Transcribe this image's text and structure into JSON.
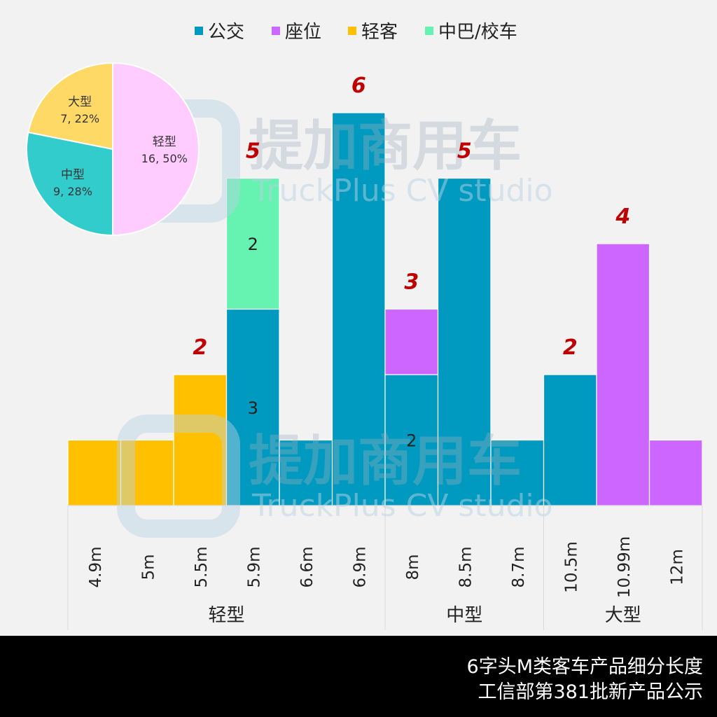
{
  "chart_data": [
    {
      "type": "bar",
      "stacked": true,
      "categories": [
        "4.9m",
        "5m",
        "5.5m",
        "5.9m",
        "6.6m",
        "6.9m",
        "8m",
        "8.5m",
        "8.7m",
        "10.5m",
        "10.99m",
        "12m"
      ],
      "groups": [
        {
          "label": "轻型",
          "categories": [
            "4.9m",
            "5m",
            "5.5m",
            "5.9m",
            "6.6m",
            "6.9m"
          ]
        },
        {
          "label": "中型",
          "categories": [
            "8m",
            "8.5m",
            "8.7m"
          ]
        },
        {
          "label": "大型",
          "categories": [
            "10.5m",
            "10.99m",
            "12m"
          ]
        }
      ],
      "series": [
        {
          "name": "公交",
          "color": "#009ac0",
          "values": [
            0,
            0,
            0,
            3,
            1,
            6,
            2,
            5,
            1,
            2,
            0,
            0
          ]
        },
        {
          "name": "座位",
          "color": "#cc66ff",
          "values": [
            0,
            0,
            0,
            0,
            0,
            0,
            1,
            0,
            0,
            0,
            4,
            1
          ]
        },
        {
          "name": "轻客",
          "color": "#ffc000",
          "values": [
            1,
            1,
            2,
            0,
            0,
            0,
            0,
            0,
            0,
            0,
            0,
            0
          ]
        },
        {
          "name": "中巴/校车",
          "color": "#66f2b0",
          "values": [
            0,
            0,
            0,
            2,
            0,
            0,
            0,
            0,
            0,
            0,
            0,
            0
          ]
        }
      ],
      "segment_labels": [
        {
          "category": "5.9m",
          "series": "公交",
          "text": "3"
        },
        {
          "category": "5.9m",
          "series": "中巴/校车",
          "text": "2"
        },
        {
          "category": "8m",
          "series": "公交",
          "text": "2"
        }
      ],
      "total_labels": [
        {
          "category": "5.5m",
          "text": "2"
        },
        {
          "category": "5.9m",
          "text": "5"
        },
        {
          "category": "6.9m",
          "text": "6"
        },
        {
          "category": "8m",
          "text": "3"
        },
        {
          "category": "8.5m",
          "text": "5"
        },
        {
          "category": "10.5m",
          "text": "2"
        },
        {
          "category": "10.99m",
          "text": "4"
        }
      ],
      "ylim": [
        0,
        6
      ],
      "grid": false,
      "legend": "top"
    },
    {
      "type": "pie",
      "slices": [
        {
          "label": "轻型",
          "value": 16,
          "percent": "50%",
          "text": "16, 50%",
          "color": "#ffccff"
        },
        {
          "label": "中型",
          "value": 9,
          "percent": "28%",
          "text": "9, 28%",
          "color": "#33cccc"
        },
        {
          "label": "大型",
          "value": 7,
          "percent": "22%",
          "text": "7, 22%",
          "color": "#ffd966"
        }
      ]
    }
  ],
  "watermark": {
    "cn": "提加商用车",
    "en": "TruckPlus CV studio"
  },
  "footer": {
    "line1": "6字头M类客车产品细分长度",
    "line2": "工信部第381批新产品公示"
  }
}
